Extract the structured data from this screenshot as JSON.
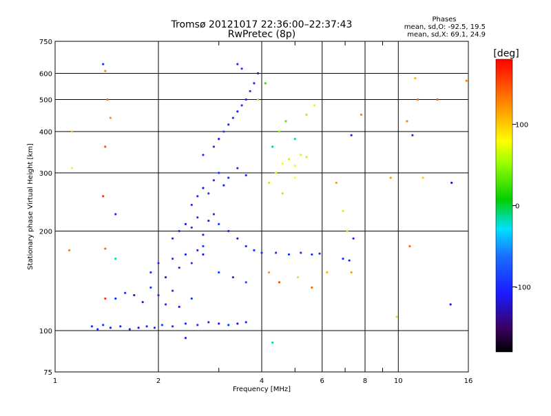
{
  "chart_data": {
    "type": "scatter",
    "title": "Tromsø 20121017 22:36:00–22:37:43",
    "subtitle": "RwPretec (8p)",
    "xlabel": "Frequency [MHz]",
    "ylabel": "Stationary phase Virtual Height [km]",
    "xscale": "log",
    "yscale": "log",
    "xlim": [
      1,
      16
    ],
    "ylim": [
      75,
      750
    ],
    "x_ticks": [
      1,
      2,
      4,
      6,
      8,
      10,
      16
    ],
    "x_tick_labels": [
      "1",
      "2",
      "4",
      "6",
      "8",
      "10",
      "16"
    ],
    "x_minor_ticks": [
      3,
      5,
      7,
      9
    ],
    "y_ticks": [
      75,
      100,
      200,
      300,
      400,
      500,
      600,
      750
    ],
    "y_tick_labels": [
      "75",
      "100",
      "200",
      "300",
      "400",
      "500",
      "600",
      "750"
    ],
    "grid": true,
    "stats": {
      "header": "Phases",
      "line1": "mean, sd,O: -92.5, 19.5",
      "line2": "mean, sd,X:  69.1, 24.9"
    },
    "colorbar": {
      "label": "[deg]",
      "range": [
        -180,
        180
      ],
      "ticks": [
        100,
        0,
        -100
      ],
      "tick_labels": [
        "100",
        "0",
        "-100"
      ],
      "colormap": "rainbow (black-purple-blue-cyan-green-yellow-orange-red)"
    },
    "series": [
      {
        "points": [
          [
            1.28,
            103,
            -95
          ],
          [
            1.33,
            101,
            -100
          ],
          [
            1.38,
            104,
            -90
          ],
          [
            1.45,
            102,
            -105
          ],
          [
            1.55,
            103,
            -98
          ],
          [
            1.65,
            101,
            -92
          ],
          [
            1.75,
            102,
            -110
          ],
          [
            1.85,
            103,
            -95
          ],
          [
            1.95,
            102,
            -100
          ],
          [
            2.05,
            104,
            -88
          ],
          [
            2.2,
            103,
            -96
          ],
          [
            2.4,
            105,
            -102
          ],
          [
            2.6,
            104,
            -94
          ],
          [
            2.8,
            106,
            -100
          ],
          [
            3.0,
            105,
            -108
          ],
          [
            3.2,
            104,
            -90
          ],
          [
            3.4,
            105,
            -115
          ],
          [
            3.6,
            106,
            -97
          ],
          [
            1.5,
            125,
            -100
          ],
          [
            1.6,
            130,
            -95
          ],
          [
            1.7,
            128,
            -110
          ],
          [
            1.8,
            122,
            -105
          ],
          [
            1.9,
            135,
            -90
          ],
          [
            2.0,
            128,
            -100
          ],
          [
            2.1,
            120,
            -98
          ],
          [
            2.2,
            132,
            -95
          ],
          [
            2.3,
            118,
            -108
          ],
          [
            2.5,
            125,
            -92
          ],
          [
            1.9,
            150,
            -95
          ],
          [
            2.0,
            160,
            -100
          ],
          [
            2.1,
            145,
            -110
          ],
          [
            2.2,
            165,
            -90
          ],
          [
            2.3,
            155,
            -98
          ],
          [
            2.4,
            170,
            -105
          ],
          [
            2.5,
            160,
            -95
          ],
          [
            2.6,
            175,
            -100
          ],
          [
            2.7,
            180,
            -88
          ],
          [
            2.2,
            190,
            -100
          ],
          [
            2.3,
            200,
            -95
          ],
          [
            2.4,
            210,
            -110
          ],
          [
            2.5,
            205,
            -90
          ],
          [
            2.6,
            220,
            -100
          ],
          [
            2.7,
            195,
            -98
          ],
          [
            2.8,
            215,
            -105
          ],
          [
            2.9,
            225,
            -95
          ],
          [
            3.0,
            210,
            -92
          ],
          [
            3.2,
            200,
            -100
          ],
          [
            3.4,
            190,
            -108
          ],
          [
            2.5,
            240,
            -95
          ],
          [
            2.6,
            255,
            -100
          ],
          [
            2.7,
            270,
            -110
          ],
          [
            2.8,
            260,
            -90
          ],
          [
            2.9,
            285,
            -100
          ],
          [
            3.0,
            300,
            -95
          ],
          [
            3.1,
            275,
            -105
          ],
          [
            3.2,
            290,
            -98
          ],
          [
            3.4,
            310,
            -100
          ],
          [
            3.6,
            295,
            -92
          ],
          [
            2.7,
            340,
            -100
          ],
          [
            2.9,
            360,
            -95
          ],
          [
            3.0,
            380,
            -110
          ],
          [
            3.1,
            400,
            -90
          ],
          [
            3.2,
            420,
            -100
          ],
          [
            3.3,
            440,
            -98
          ],
          [
            3.4,
            460,
            -105
          ],
          [
            3.5,
            480,
            -95
          ],
          [
            3.6,
            500,
            -100
          ],
          [
            3.7,
            530,
            -92
          ],
          [
            3.8,
            560,
            -100
          ],
          [
            3.9,
            600,
            -110
          ],
          [
            3.5,
            620,
            -95
          ],
          [
            3.4,
            640,
            -100
          ],
          [
            3.6,
            180,
            -95
          ],
          [
            3.8,
            175,
            -100
          ],
          [
            4.0,
            172,
            -105
          ],
          [
            4.4,
            172,
            -95
          ],
          [
            4.8,
            170,
            -100
          ],
          [
            5.2,
            172,
            -98
          ],
          [
            5.6,
            170,
            -100
          ],
          [
            5.9,
            171,
            -95
          ],
          [
            6.9,
            165,
            -100
          ],
          [
            7.2,
            163,
            -105
          ],
          [
            4.2,
            280,
            60
          ],
          [
            4.4,
            300,
            70
          ],
          [
            4.6,
            320,
            80
          ],
          [
            4.8,
            330,
            65
          ],
          [
            5.0,
            315,
            75
          ],
          [
            5.2,
            340,
            70
          ],
          [
            5.4,
            335,
            60
          ],
          [
            4.6,
            260,
            55
          ],
          [
            5.0,
            290,
            80
          ],
          [
            4.5,
            400,
            45
          ],
          [
            4.7,
            430,
            30
          ],
          [
            5.0,
            380,
            -20
          ],
          [
            5.4,
            450,
            55
          ],
          [
            5.7,
            480,
            70
          ],
          [
            4.3,
            360,
            -10
          ],
          [
            3.9,
            500,
            50
          ],
          [
            4.1,
            560,
            20
          ],
          [
            1.12,
            400,
            110
          ],
          [
            1.12,
            310,
            85
          ],
          [
            1.38,
            640,
            -100
          ],
          [
            1.4,
            610,
            130
          ],
          [
            1.42,
            500,
            140
          ],
          [
            1.45,
            440,
            125
          ],
          [
            1.4,
            360,
            150
          ],
          [
            1.38,
            255,
            160
          ],
          [
            1.5,
            225,
            -100
          ],
          [
            1.1,
            175,
            130
          ],
          [
            1.4,
            177,
            140
          ],
          [
            1.4,
            125,
            160
          ],
          [
            1.5,
            165,
            -20
          ],
          [
            2.7,
            170,
            -120
          ],
          [
            3.0,
            150,
            -90
          ],
          [
            3.3,
            145,
            -100
          ],
          [
            3.6,
            140,
            -80
          ],
          [
            4.2,
            150,
            120
          ],
          [
            4.5,
            140,
            150
          ],
          [
            5.1,
            145,
            60
          ],
          [
            5.6,
            135,
            140
          ],
          [
            6.2,
            150,
            110
          ],
          [
            6.6,
            280,
            120
          ],
          [
            6.9,
            230,
            90
          ],
          [
            7.1,
            200,
            100
          ],
          [
            7.4,
            190,
            -100
          ],
          [
            7.3,
            150,
            120
          ],
          [
            7.8,
            450,
            130
          ],
          [
            9.5,
            290,
            120
          ],
          [
            10.8,
            180,
            140
          ],
          [
            10.6,
            430,
            130
          ],
          [
            11.2,
            580,
            110
          ],
          [
            11.4,
            500,
            140
          ],
          [
            11.0,
            390,
            -100
          ],
          [
            13.0,
            500,
            150
          ],
          [
            14.3,
            280,
            -120
          ],
          [
            15.8,
            570,
            130
          ],
          [
            11.8,
            290,
            100
          ],
          [
            14.2,
            120,
            -110
          ],
          [
            9.9,
            110,
            60
          ],
          [
            7.3,
            390,
            -100
          ],
          [
            4.3,
            92,
            -20
          ],
          [
            2.4,
            95,
            -110
          ]
        ]
      }
    ]
  }
}
